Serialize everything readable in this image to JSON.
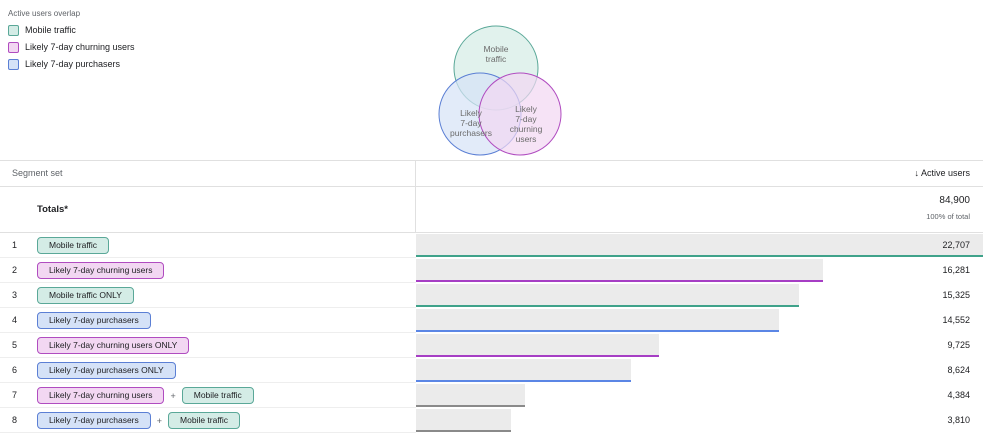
{
  "legend": {
    "title": "Active users overlap",
    "items": [
      {
        "name": "Mobile traffic",
        "color": "#d4ece6",
        "border": "#5aa898"
      },
      {
        "name": "Likely 7-day churning users",
        "color": "#f2d7f2",
        "border": "#b04cc0"
      },
      {
        "name": "Likely 7-day purchasers",
        "color": "#d5e2f7",
        "border": "#5b7fd4"
      }
    ]
  },
  "venn": [
    {
      "lines": [
        "Mobile",
        "traffic"
      ],
      "color": "#d4ece6",
      "border": "#5aa898"
    },
    {
      "lines": [
        "Likely",
        "7-day",
        "purchasers"
      ],
      "color": "#d5e2f7",
      "border": "#5b7fd4"
    },
    {
      "lines": [
        "Likely",
        "7-day",
        "churning",
        "users"
      ],
      "color": "#f2d7f2",
      "border": "#b04cc0"
    }
  ],
  "table": {
    "header": {
      "segment": "Segment set",
      "metric": "↓ Active users"
    },
    "totals": {
      "label": "Totals*",
      "value": "84,900",
      "share": "100% of total"
    },
    "rows": [
      {
        "index": "1",
        "segments": [
          {
            "text": "Mobile traffic",
            "color": "#d4ece6",
            "border": "#5aa898"
          }
        ],
        "value": 22707,
        "value_label": "22,707",
        "line_color": "#3fa28a"
      },
      {
        "index": "2",
        "segments": [
          {
            "text": "Likely 7-day churning users",
            "color": "#f2d7f2",
            "border": "#b04cc0"
          }
        ],
        "value": 16281,
        "value_label": "16,281",
        "line_color": "#a63ec4"
      },
      {
        "index": "3",
        "segments": [
          {
            "text": "Mobile traffic ONLY",
            "color": "#d4ece6",
            "border": "#5aa898"
          }
        ],
        "value": 15325,
        "value_label": "15,325",
        "line_color": "#3fa28a"
      },
      {
        "index": "4",
        "segments": [
          {
            "text": "Likely 7-day purchasers",
            "color": "#d5e2f7",
            "border": "#5b7fd4"
          }
        ],
        "value": 14552,
        "value_label": "14,552",
        "line_color": "#5b86e5"
      },
      {
        "index": "5",
        "segments": [
          {
            "text": "Likely 7-day churning users ONLY",
            "color": "#f2d7f2",
            "border": "#b04cc0"
          }
        ],
        "value": 9725,
        "value_label": "9,725",
        "line_color": "#a63ec4"
      },
      {
        "index": "6",
        "segments": [
          {
            "text": "Likely 7-day purchasers ONLY",
            "color": "#d5e2f7",
            "border": "#5b7fd4"
          }
        ],
        "value": 8624,
        "value_label": "8,624",
        "line_color": "#5b86e5"
      },
      {
        "index": "7",
        "segments": [
          {
            "text": "Likely 7-day churning users",
            "color": "#f2d7f2",
            "border": "#b04cc0"
          },
          {
            "text": "Mobile traffic",
            "color": "#d4ece6",
            "border": "#5aa898"
          }
        ],
        "joiner": "+",
        "value": 4384,
        "value_label": "4,384",
        "line_color": "#8a8a8a"
      },
      {
        "index": "8",
        "segments": [
          {
            "text": "Likely 7-day purchasers",
            "color": "#d5e2f7",
            "border": "#5b7fd4"
          },
          {
            "text": "Mobile traffic",
            "color": "#d4ece6",
            "border": "#5aa898"
          }
        ],
        "joiner": "+",
        "value": 3810,
        "value_label": "3,810",
        "line_color": "#8a8a8a"
      }
    ]
  }
}
